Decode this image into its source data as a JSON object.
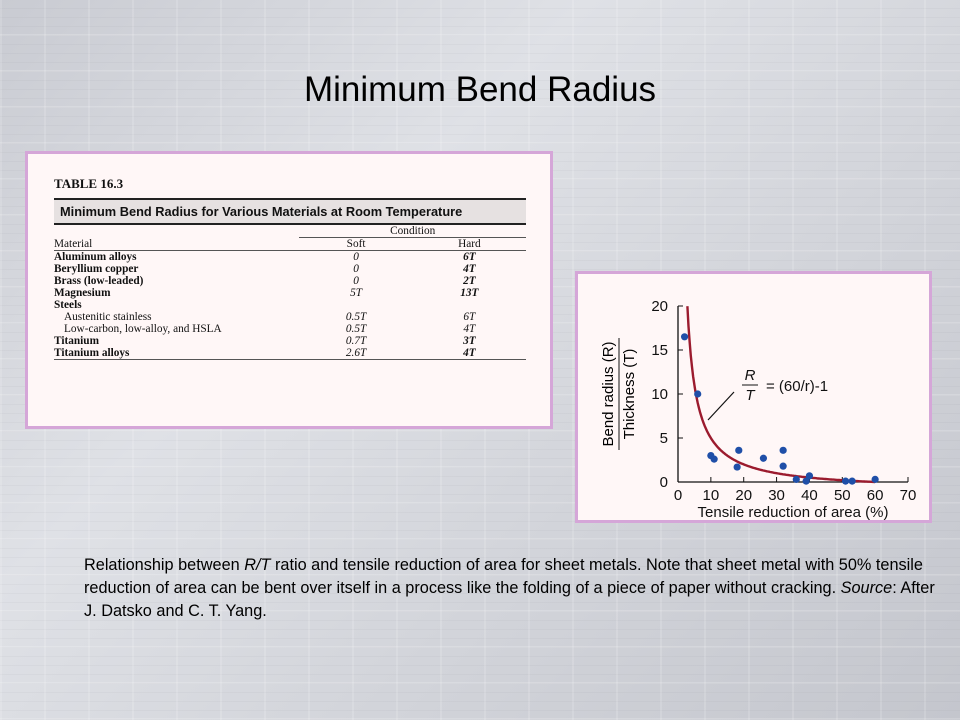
{
  "slide": {
    "title": "Minimum Bend Radius"
  },
  "table": {
    "label": "TABLE 16.3",
    "caption": "Minimum Bend Radius for Various Materials at Room Temperature",
    "condition_header": "Condition",
    "columns": [
      "Material",
      "Soft",
      "Hard"
    ],
    "rows": [
      {
        "material": "Aluminum alloys",
        "soft": "0",
        "hard": "6T",
        "bold": true
      },
      {
        "material": "Beryllium copper",
        "soft": "0",
        "hard": "4T",
        "bold": true
      },
      {
        "material": "Brass (low-leaded)",
        "soft": "0",
        "hard": "2T",
        "bold": true
      },
      {
        "material": "Magnesium",
        "soft": "5T",
        "hard": "13T",
        "bold": true
      },
      {
        "material": "Steels",
        "soft": "",
        "hard": "",
        "bold": true
      },
      {
        "material": "Austenitic stainless",
        "soft": "0.5T",
        "hard": "6T",
        "bold": false
      },
      {
        "material": "Low-carbon, low-alloy, and HSLA",
        "soft": "0.5T",
        "hard": "4T",
        "bold": false
      },
      {
        "material": "Titanium",
        "soft": "0.7T",
        "hard": "3T",
        "bold": true
      },
      {
        "material": "Titanium alloys",
        "soft": "2.6T",
        "hard": "4T",
        "bold": true
      }
    ]
  },
  "chart_data": {
    "type": "scatter",
    "xlabel": "Tensile reduction of area (%)",
    "ylabel_top": "Bend radius (R)",
    "ylabel_bottom": "Thickness (T)",
    "xlim": [
      0,
      70
    ],
    "ylim": [
      0,
      20
    ],
    "xticks": [
      0,
      10,
      20,
      30,
      40,
      50,
      60,
      70
    ],
    "yticks": [
      0,
      5,
      10,
      15,
      20
    ],
    "grid": false,
    "curve_label": {
      "num": "R",
      "den": "T",
      "rhs": "= (60/r)-1"
    },
    "curve": {
      "formula": "60/r - 1",
      "color": "#9b1b2e"
    },
    "point_color": "#1f4fa8",
    "points": [
      [
        2,
        16.5
      ],
      [
        6,
        10
      ],
      [
        10,
        3
      ],
      [
        11,
        2.6
      ],
      [
        18,
        1.7
      ],
      [
        18.5,
        3.6
      ],
      [
        26,
        2.7
      ],
      [
        32,
        3.6
      ],
      [
        32,
        1.8
      ],
      [
        36,
        0.3
      ],
      [
        39,
        0.1
      ],
      [
        40,
        0.7
      ],
      [
        51,
        0.1
      ],
      [
        53,
        0.1
      ],
      [
        60,
        0.3
      ]
    ]
  },
  "figure_caption": {
    "p1": "Relationship between ",
    "p2": "R/T",
    "p3": " ratio and tensile reduction of area for sheet metals.  Note that sheet metal with 50% tensile reduction of area can be bent over itself in a process like the folding of a piece of paper without cracking.  ",
    "p4": "Source",
    "p5": ":  After J. Datsko and C. T. Yang."
  }
}
